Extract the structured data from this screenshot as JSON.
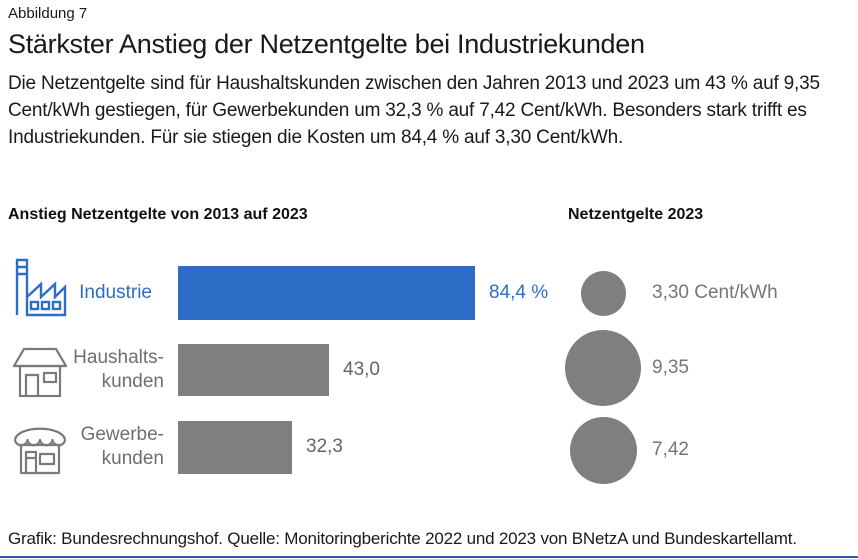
{
  "figure_label": "Abbildung 7",
  "title": "Stärkster Anstieg der Netzentgelte bei Industriekunden",
  "intro": "Die Netzentgelte sind für Haushaltskunden zwischen den Jahren 2013 und 2023 um 43 % auf 9,35 Cent/kWh gestiegen, für Gewerbekunden um 32,3 % auf 7,42 Cent/kWh. Besonders stark trifft es Industriekunden. Für sie stiegen die Kosten um 84,4 % auf 3,30 Cent/kWh.",
  "footer": "Grafik: Bundesrechnungshof. Quelle: Monitoringberichte 2022 und 2023 von BNetzA und Bundeskartellamt.",
  "colors": {
    "accent_blue": "#2e6dc7",
    "shape_gray": "#7f7f7f",
    "label_gray": "#6f6f6f",
    "text_black": "#1a1a1a",
    "bottom_rule_blue": "#2a5db0"
  },
  "chart_data": [
    {
      "type": "bar",
      "orientation": "horizontal",
      "title": "Anstieg Netzentgelte von 2013 auf 2023",
      "value_unit": "percent",
      "categories": [
        "Industrie",
        "Haushaltskunden",
        "Gewerbekunden"
      ],
      "category_display": [
        [
          "Industrie"
        ],
        [
          "Haushalts-",
          "kunden"
        ],
        [
          "Gewerbe-",
          "kunden"
        ]
      ],
      "values": [
        84.4,
        43.0,
        32.3
      ],
      "value_labels": [
        "84,4 %",
        "43,0",
        "32,3"
      ],
      "bar_colors": [
        "#2e6dc7",
        "#7f7f7f",
        "#7f7f7f"
      ],
      "icons": [
        "factory-icon",
        "house-icon",
        "shop-icon"
      ],
      "xlim": [
        0,
        100
      ],
      "axis": "none",
      "grid": false
    },
    {
      "type": "bubble",
      "title": "Netzentgelte 2023",
      "value_unit": "Cent/kWh",
      "categories": [
        "Industrie",
        "Haushaltskunden",
        "Gewerbekunden"
      ],
      "values": [
        3.3,
        9.35,
        7.42
      ],
      "value_labels": [
        "3,30 Cent/kWh",
        "9,35",
        "7,42"
      ],
      "bubble_color": "#7f7f7f",
      "area_proportional": true,
      "legend": "none"
    }
  ]
}
